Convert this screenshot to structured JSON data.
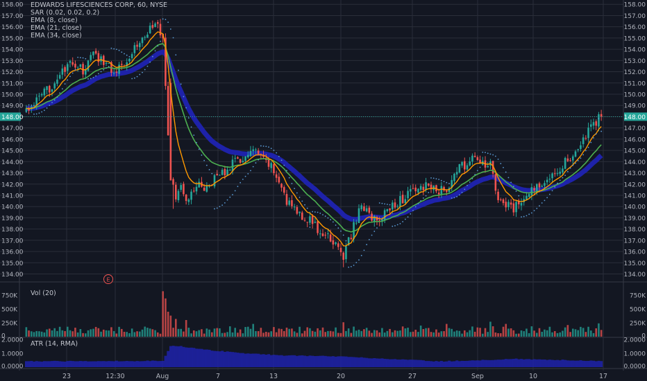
{
  "legend": {
    "title": "EDWARDS LIFESCIENCES CORP, 60, NYSE",
    "indicators": [
      "SAR (0.02, 0.02, 0.2)",
      "EMA (8, close)",
      "EMA (21, close)",
      "EMA (34, close)"
    ],
    "volume": "Vol (20)",
    "atr": "ATR (14, RMA)"
  },
  "colors": {
    "background": "#131722",
    "up": "#26a69a",
    "down": "#ef5350",
    "ema8": "#ff9800",
    "ema21": "#4caf50",
    "ema34": "#1e22aa",
    "sar": "#5b9bd5",
    "atr_fill": "#1e22aa",
    "price_tag": "#26a69a",
    "grid": "#2a2e39"
  },
  "chart_data": [
    {
      "type": "candlestick",
      "title": "EDWARDS LIFESCIENCES CORP, 60, NYSE",
      "ylim": [
        133.6,
        158.2
      ],
      "y_ticks": [
        "158.00",
        "157.00",
        "156.00",
        "155.00",
        "154.00",
        "153.00",
        "152.00",
        "151.00",
        "150.00",
        "149.00",
        "148.00",
        "147.00",
        "146.00",
        "145.00",
        "144.00",
        "143.00",
        "142.00",
        "141.00",
        "140.00",
        "139.00",
        "138.00",
        "137.00",
        "136.00",
        "135.00",
        "134.00"
      ],
      "x_ticks": [
        "23",
        "12:30",
        "Aug",
        "7",
        "13",
        "20",
        "27",
        "Sep",
        "10",
        "17"
      ],
      "last_price": "148.00",
      "earnings_marker": "E",
      "close_path": [
        [
          0,
          148.6
        ],
        [
          6,
          149.8
        ],
        [
          12,
          151.4
        ],
        [
          18,
          152.8
        ],
        [
          22,
          152.1
        ],
        [
          26,
          153.5
        ],
        [
          30,
          153.0
        ],
        [
          34,
          152.0
        ],
        [
          38,
          152.9
        ],
        [
          42,
          154.2
        ],
        [
          46,
          155.2
        ],
        [
          50,
          156.6
        ],
        [
          53,
          154.6
        ],
        [
          56,
          142.5
        ],
        [
          58,
          140.8
        ],
        [
          60,
          141.6
        ],
        [
          63,
          140.6
        ],
        [
          66,
          142.0
        ],
        [
          69,
          141.7
        ],
        [
          72,
          142.3
        ],
        [
          76,
          143.0
        ],
        [
          80,
          143.8
        ],
        [
          84,
          144.3
        ],
        [
          88,
          144.9
        ],
        [
          92,
          144.1
        ],
        [
          95,
          143.5
        ],
        [
          98,
          142.4
        ],
        [
          101,
          140.3
        ],
        [
          104,
          139.9
        ],
        [
          107,
          139.2
        ],
        [
          110,
          138.8
        ],
        [
          113,
          138.0
        ],
        [
          116,
          137.3
        ],
        [
          119,
          136.9
        ],
        [
          122,
          136.2
        ],
        [
          123,
          135.0
        ],
        [
          124,
          136.4
        ],
        [
          126,
          137.5
        ],
        [
          128,
          138.9
        ],
        [
          130,
          140.2
        ],
        [
          133,
          139.4
        ],
        [
          136,
          138.5
        ],
        [
          139,
          139.4
        ],
        [
          142,
          140.2
        ],
        [
          145,
          140.6
        ],
        [
          148,
          141.0
        ],
        [
          151,
          141.5
        ],
        [
          154,
          141.8
        ],
        [
          157,
          141.7
        ],
        [
          160,
          141.3
        ],
        [
          163,
          141.6
        ],
        [
          165,
          142.5
        ],
        [
          168,
          143.4
        ],
        [
          171,
          143.9
        ],
        [
          174,
          144.2
        ],
        [
          177,
          144.0
        ],
        [
          180,
          143.6
        ],
        [
          183,
          140.6
        ],
        [
          186,
          140.1
        ],
        [
          189,
          139.8
        ],
        [
          192,
          140.5
        ],
        [
          195,
          141.2
        ],
        [
          198,
          141.8
        ],
        [
          201,
          142.4
        ],
        [
          204,
          143.0
        ],
        [
          207,
          143.5
        ],
        [
          210,
          144.2
        ],
        [
          213,
          145.0
        ],
        [
          216,
          145.8
        ],
        [
          219,
          147.0
        ],
        [
          222,
          147.8
        ]
      ],
      "series": [
        {
          "name": "EMA (8, close)",
          "kind": "ema",
          "period": 8
        },
        {
          "name": "EMA (21, close)",
          "kind": "ema",
          "period": 21
        },
        {
          "name": "EMA (34, close)",
          "kind": "ema",
          "period": 34
        },
        {
          "name": "SAR (0.02, 0.02, 0.2)",
          "kind": "sar",
          "acceleration_start": 0.02,
          "acceleration_step": 0.02,
          "acceleration_max": 0.2
        }
      ]
    },
    {
      "type": "bar",
      "title": "Vol (20)",
      "ylim": [
        0,
        900000
      ],
      "y_ticks": [
        "750K",
        "500K",
        "250K",
        "0"
      ],
      "typical_volume": 150000,
      "spikes": [
        [
          53,
          820000
        ],
        [
          54,
          690000
        ],
        [
          55,
          450000
        ],
        [
          56,
          380000
        ],
        [
          58,
          320000
        ],
        [
          62,
          300000
        ],
        [
          88,
          230000
        ],
        [
          123,
          260000
        ],
        [
          153,
          200000
        ],
        [
          163,
          230000
        ],
        [
          180,
          270000
        ],
        [
          186,
          230000
        ],
        [
          210,
          210000
        ],
        [
          222,
          240000
        ]
      ]
    },
    {
      "type": "area",
      "title": "ATR (14, RMA)",
      "ylim": [
        0,
        2.0
      ],
      "y_ticks": [
        "2.0000",
        "1.0000",
        "0.0000"
      ],
      "points": [
        [
          0,
          0.42
        ],
        [
          53,
          0.45
        ],
        [
          56,
          1.55
        ],
        [
          60,
          1.5
        ],
        [
          70,
          1.25
        ],
        [
          85,
          1.0
        ],
        [
          100,
          0.85
        ],
        [
          120,
          0.78
        ],
        [
          140,
          0.6
        ],
        [
          160,
          0.42
        ],
        [
          180,
          0.52
        ],
        [
          190,
          0.6
        ],
        [
          222,
          0.45
        ]
      ]
    }
  ]
}
